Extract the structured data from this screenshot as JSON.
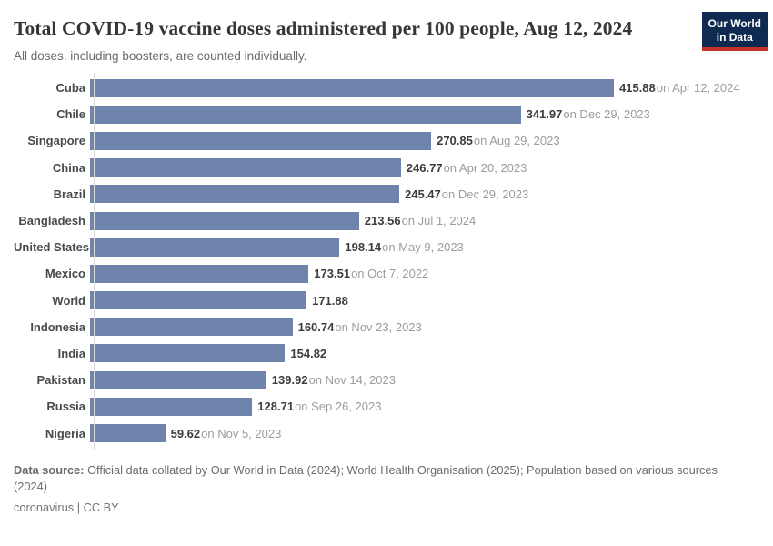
{
  "header": {
    "title": "Total COVID-19 vaccine doses administered per 100 people, Aug 12, 2024",
    "subtitle": "All doses, including boosters, are counted individually.",
    "logo": {
      "line1": "Our World",
      "line2": "in Data",
      "bg_color": "#0f2a50",
      "accent_color": "#c4302c"
    }
  },
  "chart_data": {
    "type": "bar",
    "orientation": "horizontal",
    "title": "Total COVID-19 vaccine doses administered per 100 people, Aug 12, 2024",
    "categories": [
      "Cuba",
      "Chile",
      "Singapore",
      "China",
      "Brazil",
      "Bangladesh",
      "United States",
      "Mexico",
      "World",
      "Indonesia",
      "India",
      "Pakistan",
      "Russia",
      "Nigeria"
    ],
    "values": [
      415.88,
      341.97,
      270.85,
      246.77,
      245.47,
      213.56,
      198.14,
      173.51,
      171.88,
      160.74,
      154.82,
      139.92,
      128.71,
      59.62
    ],
    "date_annotations": [
      "on Apr 12, 2024",
      "on Dec 29, 2023",
      "on Aug 29, 2023",
      "on Apr 20, 2023",
      "on Dec 29, 2023",
      "on Jul 1, 2024",
      "on May 9, 2023",
      "on Oct 7, 2022",
      "",
      "on Nov 23, 2023",
      "",
      "on Nov 14, 2023",
      "on Sep 26, 2023",
      "on Nov 5, 2023"
    ],
    "xlim": [
      0,
      415.88
    ],
    "bar_color": "#6e84ac",
    "axis_color": "#d9d9d9",
    "grid": false,
    "legend": "none",
    "value_label_color": "#3d3d3d",
    "date_label_color": "#9c9c9c"
  },
  "footer": {
    "source_label": "Data source:",
    "source_text": " Official data collated by Our World in Data (2024); World Health Organisation (2025); Population based on various sources (2024)",
    "license": "coronavirus | CC BY"
  }
}
